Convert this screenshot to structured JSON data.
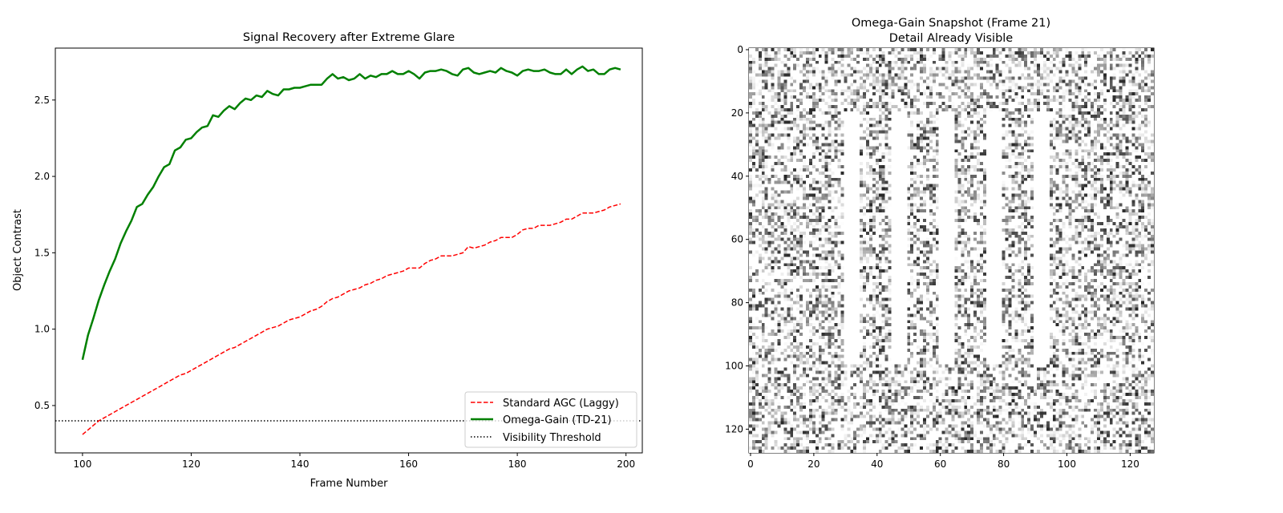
{
  "chart_data": [
    {
      "type": "line",
      "title": "Signal Recovery after Extreme Glare",
      "xlabel": "Frame Number",
      "ylabel": "Object Contrast",
      "xlim": [
        95,
        203
      ],
      "ylim": [
        0.19,
        2.84
      ],
      "xticks": [
        100,
        120,
        140,
        160,
        180,
        200
      ],
      "yticks": [
        0.5,
        1.0,
        1.5,
        2.0,
        2.5
      ],
      "grid": false,
      "legend_placement": "lower-right",
      "x": [
        100,
        101,
        102,
        103,
        104,
        105,
        106,
        107,
        108,
        109,
        110,
        111,
        112,
        113,
        114,
        115,
        116,
        117,
        118,
        119,
        120,
        121,
        122,
        123,
        124,
        125,
        126,
        127,
        128,
        129,
        130,
        131,
        132,
        133,
        134,
        135,
        136,
        137,
        138,
        139,
        140,
        141,
        142,
        143,
        144,
        145,
        146,
        147,
        148,
        149,
        150,
        151,
        152,
        153,
        154,
        155,
        156,
        157,
        158,
        159,
        160,
        161,
        162,
        163,
        164,
        165,
        166,
        167,
        168,
        169,
        170,
        171,
        172,
        173,
        174,
        175,
        176,
        177,
        178,
        179,
        180,
        181,
        182,
        183,
        184,
        185,
        186,
        187,
        188,
        189,
        190,
        191,
        192,
        193,
        194,
        195,
        196,
        197,
        198,
        199
      ],
      "series": [
        {
          "name": "Standard AGC (Laggy)",
          "color": "#ff0000",
          "style": "dashed",
          "values": [
            0.31,
            0.34,
            0.37,
            0.4,
            0.42,
            0.44,
            0.46,
            0.48,
            0.5,
            0.52,
            0.54,
            0.56,
            0.58,
            0.6,
            0.62,
            0.64,
            0.66,
            0.68,
            0.7,
            0.71,
            0.73,
            0.75,
            0.77,
            0.79,
            0.81,
            0.83,
            0.85,
            0.87,
            0.88,
            0.9,
            0.92,
            0.94,
            0.96,
            0.98,
            1.0,
            1.01,
            1.02,
            1.04,
            1.06,
            1.07,
            1.08,
            1.1,
            1.12,
            1.13,
            1.15,
            1.18,
            1.2,
            1.21,
            1.23,
            1.25,
            1.26,
            1.27,
            1.29,
            1.3,
            1.32,
            1.33,
            1.35,
            1.36,
            1.37,
            1.38,
            1.4,
            1.4,
            1.4,
            1.43,
            1.45,
            1.46,
            1.48,
            1.48,
            1.48,
            1.49,
            1.5,
            1.54,
            1.53,
            1.54,
            1.55,
            1.57,
            1.58,
            1.6,
            1.6,
            1.6,
            1.62,
            1.65,
            1.66,
            1.66,
            1.68,
            1.68,
            1.68,
            1.69,
            1.7,
            1.72,
            1.72,
            1.74,
            1.76,
            1.76,
            1.76,
            1.77,
            1.78,
            1.8,
            1.81,
            1.82
          ]
        },
        {
          "name": "Omega-Gain (TD-21)",
          "color": "#008000",
          "style": "solid",
          "values": [
            0.8,
            0.96,
            1.07,
            1.19,
            1.29,
            1.38,
            1.46,
            1.56,
            1.64,
            1.71,
            1.8,
            1.82,
            1.88,
            1.93,
            2.0,
            2.06,
            2.08,
            2.17,
            2.19,
            2.24,
            2.25,
            2.29,
            2.32,
            2.33,
            2.4,
            2.39,
            2.43,
            2.46,
            2.44,
            2.48,
            2.51,
            2.5,
            2.53,
            2.52,
            2.56,
            2.54,
            2.53,
            2.57,
            2.57,
            2.58,
            2.58,
            2.59,
            2.6,
            2.6,
            2.6,
            2.64,
            2.67,
            2.64,
            2.65,
            2.63,
            2.64,
            2.67,
            2.64,
            2.66,
            2.65,
            2.67,
            2.67,
            2.69,
            2.67,
            2.67,
            2.69,
            2.67,
            2.64,
            2.68,
            2.69,
            2.69,
            2.7,
            2.69,
            2.67,
            2.66,
            2.7,
            2.71,
            2.68,
            2.67,
            2.68,
            2.69,
            2.68,
            2.71,
            2.69,
            2.68,
            2.66,
            2.69,
            2.7,
            2.69,
            2.69,
            2.7,
            2.68,
            2.67,
            2.67,
            2.7,
            2.67,
            2.7,
            2.72,
            2.69,
            2.7,
            2.67,
            2.67,
            2.7,
            2.71,
            2.7
          ]
        },
        {
          "name": "Visibility Threshold",
          "color": "#000000",
          "style": "dotted",
          "constant": 0.4
        }
      ]
    },
    {
      "type": "heatmap",
      "title_lines": [
        "Omega-Gain Snapshot (Frame 21)",
        "Detail Already Visible"
      ],
      "rows": 128,
      "cols": 128,
      "colormap": "gray_r",
      "xticks": [
        0,
        20,
        40,
        60,
        80,
        100,
        120
      ],
      "yticks": [
        0,
        20,
        40,
        60,
        80,
        100,
        120
      ],
      "content": "random noise with five blank vertical bars",
      "blank_bars": [
        {
          "cols": [
            30,
            35
          ],
          "rows": [
            20,
            100
          ]
        },
        {
          "cols": [
            45,
            50
          ],
          "rows": [
            20,
            100
          ]
        },
        {
          "cols": [
            60,
            65
          ],
          "rows": [
            20,
            100
          ]
        },
        {
          "cols": [
            75,
            80
          ],
          "rows": [
            20,
            100
          ]
        },
        {
          "cols": [
            90,
            95
          ],
          "rows": [
            20,
            100
          ]
        }
      ]
    }
  ]
}
